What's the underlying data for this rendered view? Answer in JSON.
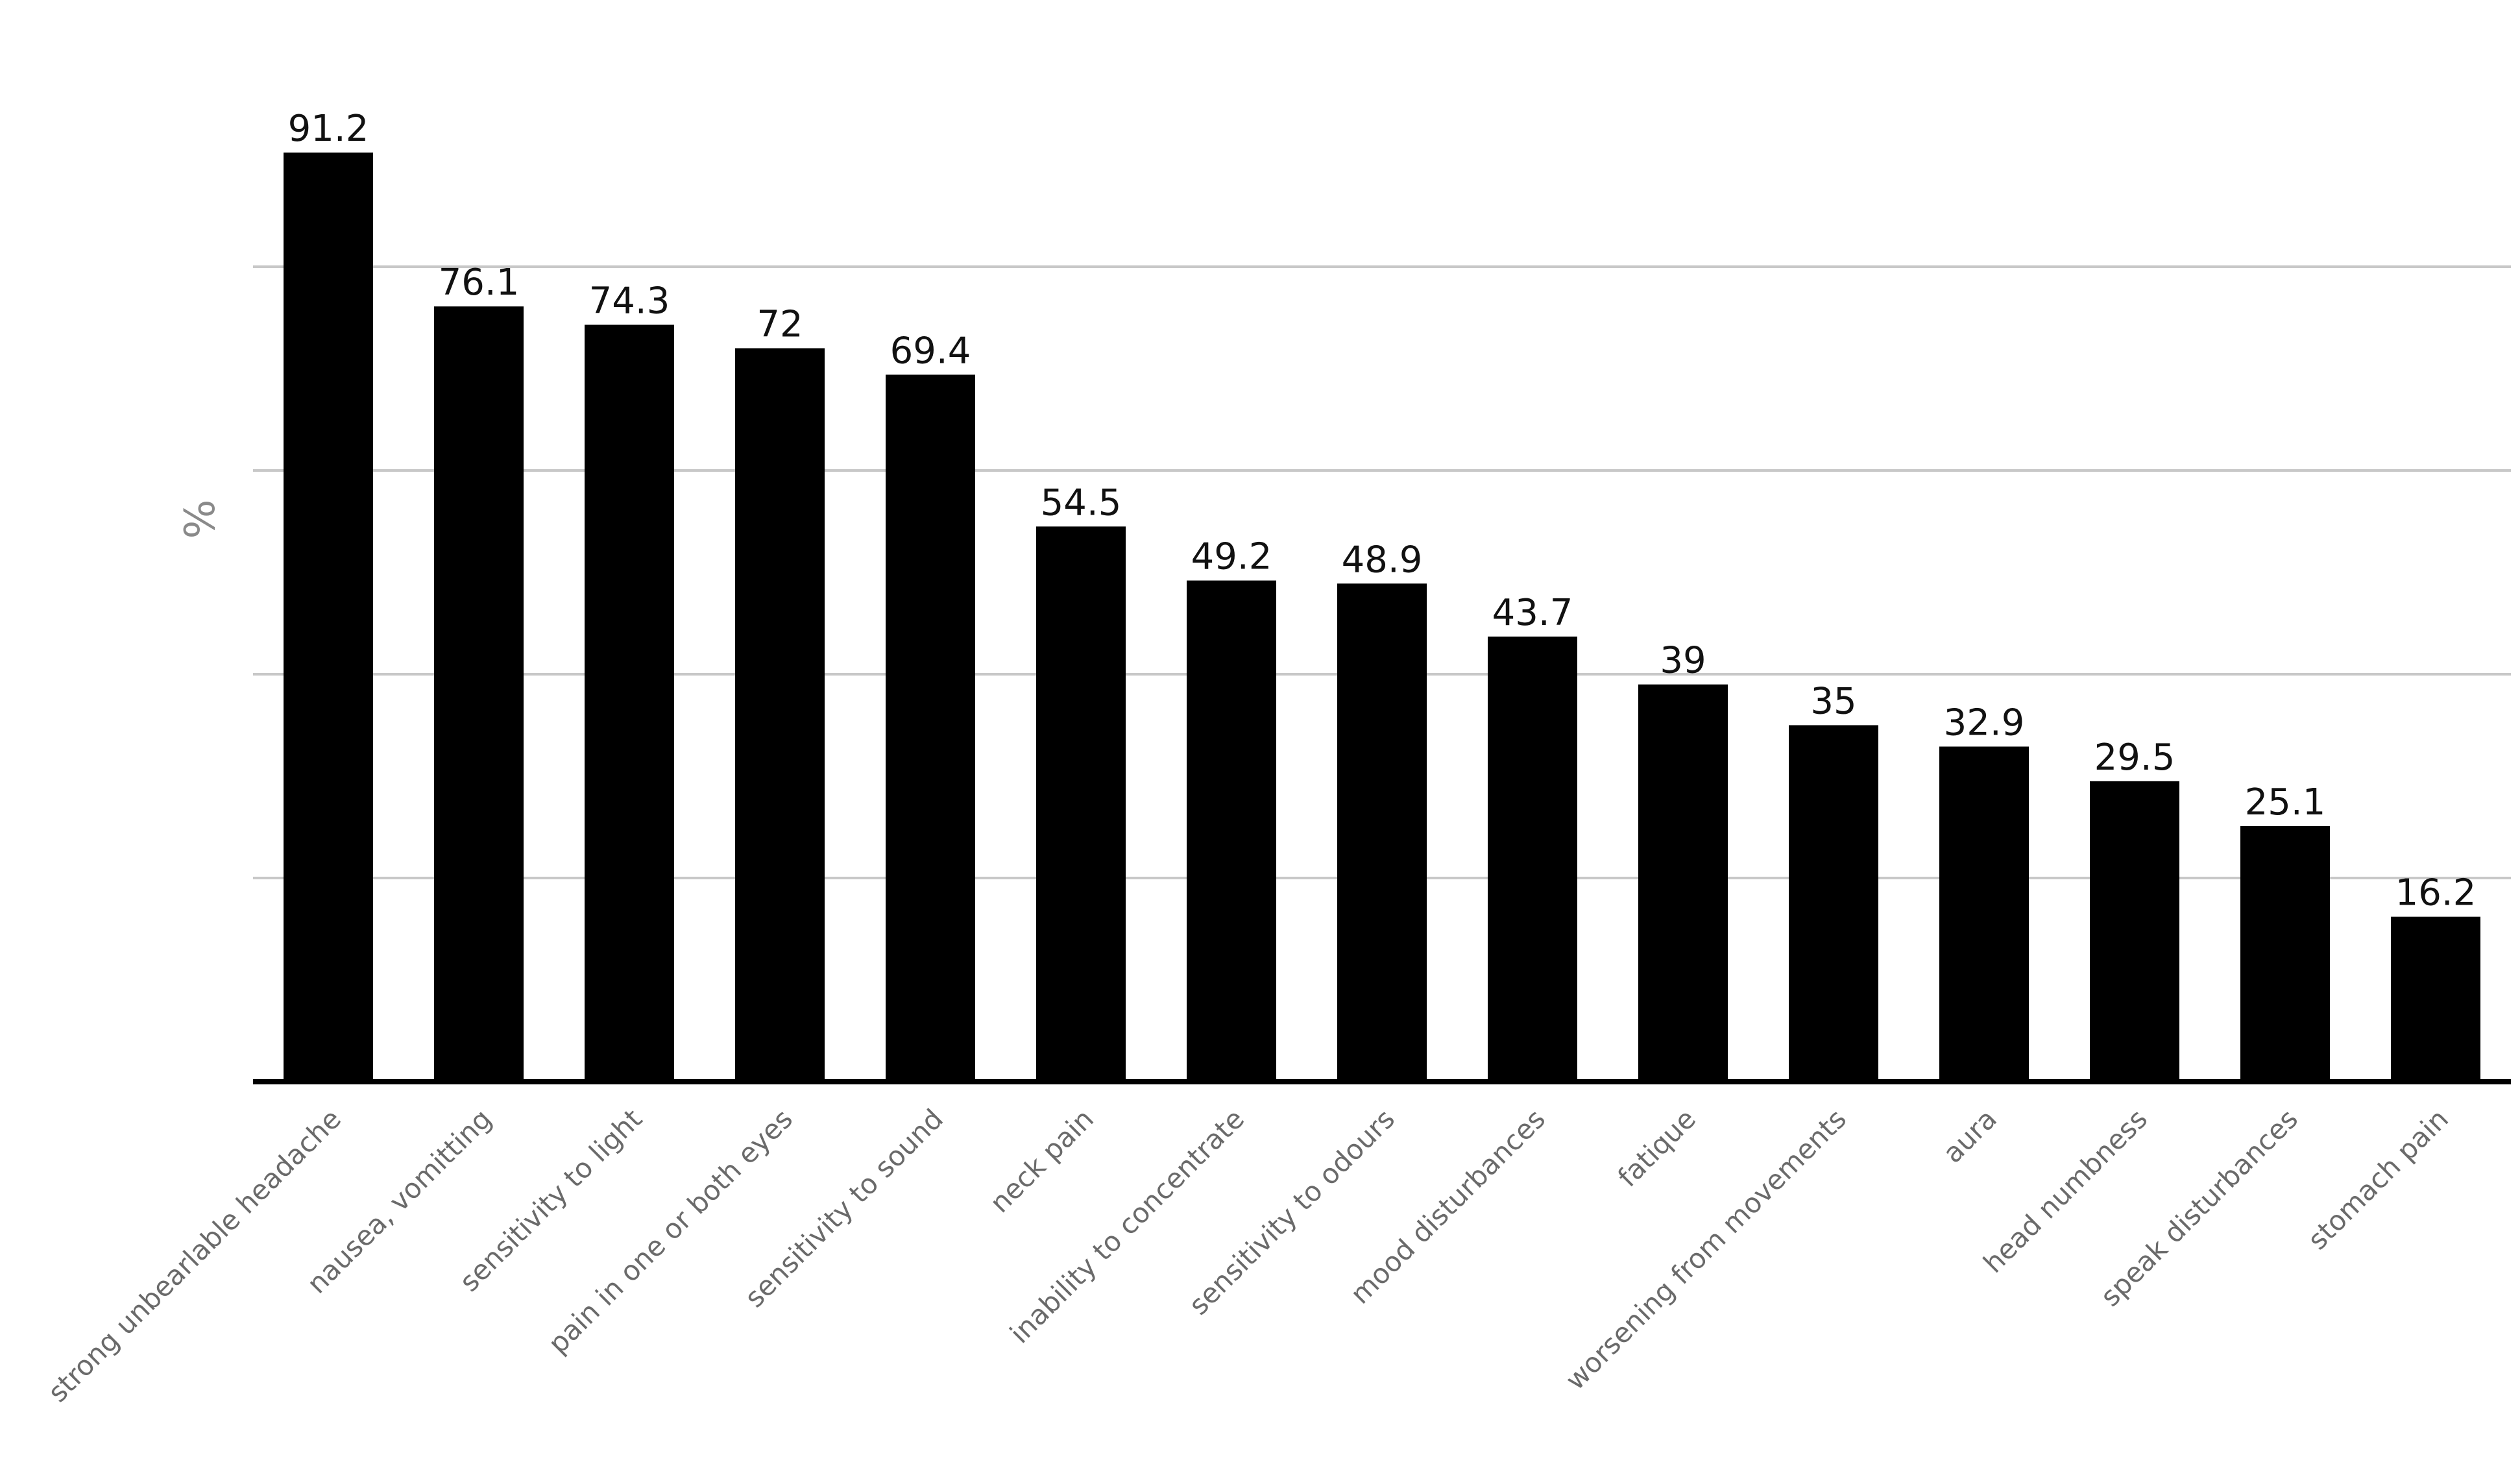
{
  "chart_data": {
    "type": "bar",
    "title": "",
    "xlabel": "",
    "ylabel": "%",
    "ylim": [
      0,
      100
    ],
    "grid": true,
    "categories": [
      "strong unbearlable headache",
      "nausea, vomitting",
      "sensitivity to light",
      "pain in one or both eyes",
      "sensitivity to sound",
      "neck pain",
      "inability to concentrate",
      "sensitivity to odours",
      "mood disturbances",
      "fatique",
      "worsening from movements",
      "aura",
      "head numbness",
      "speak disturbances",
      "stomach pain"
    ],
    "values": [
      91.2,
      76.1,
      74.3,
      72,
      69.4,
      54.5,
      49.2,
      48.9,
      43.7,
      39,
      35,
      32.9,
      29.5,
      25.1,
      16.2
    ],
    "value_labels": [
      "91.2",
      "76.1",
      "74.3",
      "72",
      "69.4",
      "54.5",
      "49.2",
      "48.9",
      "43.7",
      "39",
      "35",
      "32.9",
      "29.5",
      "25.1",
      "16.2"
    ],
    "colors": {
      "bar": "#000000",
      "gridline": "#c8c8c8",
      "axis": "#000000"
    }
  }
}
